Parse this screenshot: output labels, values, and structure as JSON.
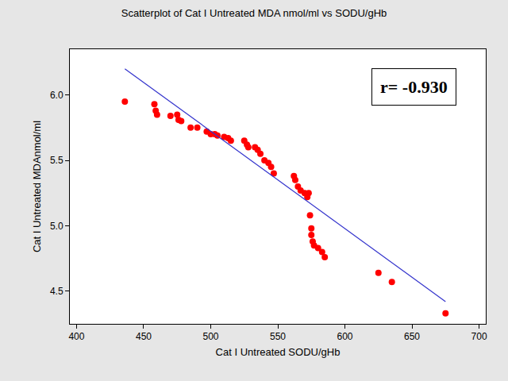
{
  "chart_data": {
    "type": "scatter",
    "title": "Scatterplot of Cat I Untreated MDA nmol/ml vs SODU/gHb",
    "x_label": "Cat I Untreated SODU/gHb",
    "y_label": "Cat I Untreated MDAnmol/ml",
    "annotations": [
      "r= -0.930"
    ],
    "xlim": [
      395,
      705
    ],
    "ylim": [
      4.25,
      6.35
    ],
    "xticks": [
      400,
      450,
      500,
      550,
      600,
      650,
      700
    ],
    "yticks": [
      4.5,
      {
        "value": 5,
        "label": "5.0"
      },
      5.5,
      {
        "value": 6,
        "label": "6.0"
      }
    ],
    "grid": false,
    "series": [
      {
        "type": "scatter",
        "color": "#ff0000",
        "marker": "circle",
        "x": [
          436,
          458,
          459,
          460,
          470,
          475,
          476,
          478,
          485,
          490,
          497,
          500,
          503,
          505,
          510,
          513,
          515,
          525,
          527,
          528,
          533,
          535,
          537,
          540,
          543,
          545,
          547,
          562,
          563,
          565,
          567,
          570,
          572,
          573,
          574,
          575,
          575,
          576,
          577,
          580,
          583,
          585,
          625,
          635,
          675
        ],
        "values": [
          5.95,
          5.93,
          5.88,
          5.85,
          5.84,
          5.85,
          5.81,
          5.8,
          5.75,
          5.75,
          5.72,
          5.7,
          5.7,
          5.69,
          5.68,
          5.67,
          5.65,
          5.65,
          5.62,
          5.6,
          5.6,
          5.58,
          5.55,
          5.5,
          5.48,
          5.45,
          5.4,
          5.38,
          5.35,
          5.3,
          5.27,
          5.25,
          5.22,
          5.25,
          5.08,
          4.98,
          4.93,
          4.88,
          4.85,
          4.83,
          4.8,
          4.76,
          4.64,
          4.57,
          4.33
        ]
      },
      {
        "type": "line",
        "color": "#3333cc",
        "line_style": "solid",
        "x": [
          436,
          675
        ],
        "values": [
          6.2,
          4.42
        ]
      }
    ]
  }
}
